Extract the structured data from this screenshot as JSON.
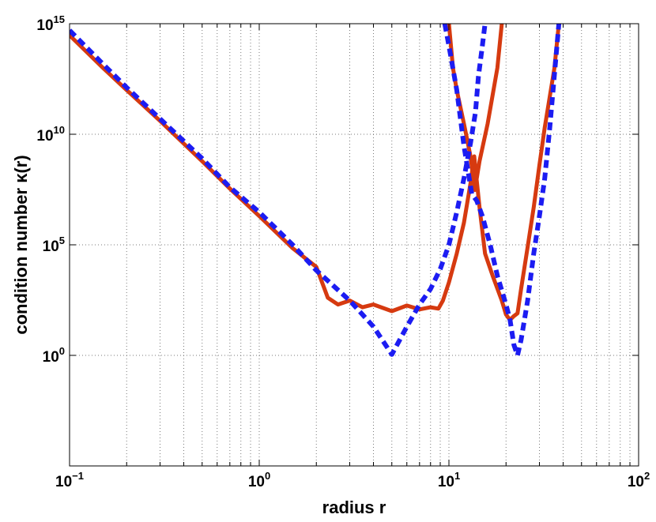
{
  "chart_data": {
    "type": "line",
    "title": "",
    "xlabel": "radius r",
    "ylabel": "condition number κ(r)",
    "xscale": "log",
    "yscale": "log",
    "xlim": [
      0.1,
      100
    ],
    "ylim": [
      1e-05,
      1000000000000000.0
    ],
    "grid": true,
    "legend": "none",
    "x_ticks": [
      {
        "base": "10",
        "exp": "−1",
        "value": 0.1
      },
      {
        "base": "10",
        "exp": "0",
        "value": 1
      },
      {
        "base": "10",
        "exp": "1",
        "value": 10
      },
      {
        "base": "10",
        "exp": "2",
        "value": 100
      }
    ],
    "y_ticks": [
      {
        "base": "10",
        "exp": "0",
        "value": 1
      },
      {
        "base": "10",
        "exp": "5",
        "value": 100000
      },
      {
        "base": "10",
        "exp": "10",
        "value": 10000000000
      },
      {
        "base": "10",
        "exp": "15",
        "value": 1000000000000000
      }
    ],
    "series": [
      {
        "style": "solid",
        "color": "#d63a10",
        "points": [
          [
            0.1,
            300000000000000.0
          ],
          [
            0.15,
            10000000000000.0
          ],
          [
            0.2,
            1000000000000.0
          ],
          [
            0.3,
            40000000000.0
          ],
          [
            0.5,
            600000000.0
          ],
          [
            0.7,
            35000000.0
          ],
          [
            1,
            2000000.0
          ],
          [
            1.5,
            70000.0
          ],
          [
            2,
            10000.0
          ],
          [
            2.3,
            400
          ],
          [
            2.6,
            200
          ],
          [
            3,
            300
          ],
          [
            3.5,
            150
          ],
          [
            4,
            200
          ],
          [
            5,
            100
          ],
          [
            6,
            180
          ],
          [
            7,
            120
          ],
          [
            8,
            150
          ],
          [
            8.8,
            130
          ],
          [
            9.3,
            300
          ],
          [
            10,
            2000
          ],
          [
            11,
            40000.0
          ],
          [
            12,
            1000000.0
          ],
          [
            13,
            60000000.0
          ],
          [
            13.6,
            1000000000.0
          ],
          [
            14.5,
            5000000.0
          ],
          [
            15.5,
            40000.0
          ],
          [
            17,
            4000
          ],
          [
            19,
            300
          ],
          [
            20,
            70
          ],
          [
            21,
            40
          ],
          [
            22,
            60
          ],
          [
            23,
            80
          ],
          [
            24,
            1000
          ],
          [
            26,
            80000.0
          ],
          [
            28,
            5000000.0
          ],
          [
            30,
            400000000.0
          ],
          [
            32,
            20000000000.0
          ],
          [
            34,
            500000000000.0
          ],
          [
            36,
            10000000000000.0
          ],
          [
            38,
            1000000000000000.0
          ]
        ]
      },
      {
        "style": "solid",
        "color": "#d63a10",
        "points": [
          [
            10,
            1000000000000000.0
          ],
          [
            10.5,
            10000000000000.0
          ],
          [
            11,
            1000000000000.0
          ],
          [
            12,
            30000000000.0
          ],
          [
            13,
            1000000000.0
          ],
          [
            13.7,
            30000000.0
          ],
          [
            14.5,
            600000000.0
          ],
          [
            16,
            30000000000.0
          ],
          [
            18,
            10000000000000.0
          ],
          [
            19,
            1000000000000000.0
          ]
        ]
      },
      {
        "style": "dashed",
        "color": "#1c1cf2",
        "points": [
          [
            0.1,
            500000000000000.0
          ],
          [
            0.15,
            15000000000000.0
          ],
          [
            0.2,
            1300000000000.0
          ],
          [
            0.3,
            50000000000.0
          ],
          [
            0.5,
            800000000.0
          ],
          [
            0.7,
            40000000.0
          ],
          [
            1,
            3000000.0
          ],
          [
            1.5,
            100000.0
          ],
          [
            2,
            7000
          ],
          [
            3,
            300
          ],
          [
            4,
            20
          ],
          [
            5,
            1.1
          ],
          [
            6,
            20
          ],
          [
            7,
            200
          ],
          [
            8,
            1000
          ],
          [
            9,
            8000
          ],
          [
            10,
            100000.0
          ],
          [
            11,
            3000000.0
          ],
          [
            12,
            100000000.0
          ],
          [
            13,
            4000000000.0
          ],
          [
            13.8,
            100000000000.0
          ],
          [
            14.3,
            4000000000000.0
          ],
          [
            15,
            100000000000000.0
          ],
          [
            15.5,
            1000000000000000.0
          ]
        ]
      },
      {
        "style": "dashed",
        "color": "#1c1cf2",
        "points": [
          [
            9.5,
            1000000000000000.0
          ],
          [
            10,
            100000000000000.0
          ],
          [
            11,
            1000000000000.0
          ],
          [
            12,
            3000000000.0
          ],
          [
            13.2,
            20000000.0
          ],
          [
            14,
            10000000.0
          ],
          [
            15,
            2000000.0
          ],
          [
            16.5,
            100000.0
          ],
          [
            18,
            4000
          ],
          [
            20,
            200
          ],
          [
            21,
            40
          ],
          [
            22,
            3
          ],
          [
            23,
            1
          ],
          [
            24,
            5
          ],
          [
            26,
            300
          ],
          [
            28,
            40000.0
          ],
          [
            30,
            2000000.0
          ],
          [
            32,
            100000000.0
          ],
          [
            34,
            20000000000.0
          ],
          [
            36,
            5000000000000.0
          ],
          [
            38,
            1000000000000000.0
          ]
        ]
      }
    ]
  }
}
